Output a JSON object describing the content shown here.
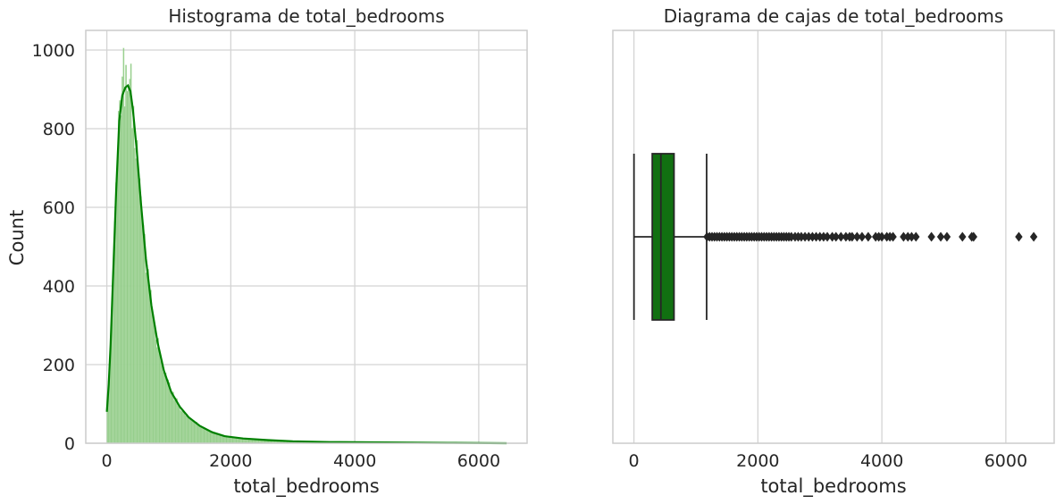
{
  "chart_data": [
    {
      "type": "histogram",
      "title": "Histograma de total_bedrooms",
      "xlabel": "total_bedrooms",
      "ylabel": "Count",
      "xlim": [
        -340,
        6780
      ],
      "ylim": [
        0,
        1050
      ],
      "xticks": [
        0,
        2000,
        4000,
        6000
      ],
      "yticks": [
        0,
        200,
        400,
        600,
        800,
        1000
      ],
      "xtick_labels": [
        "0",
        "2000",
        "4000",
        "6000"
      ],
      "ytick_labels": [
        "0",
        "200",
        "400",
        "600",
        "800",
        "1000"
      ],
      "grid": true,
      "bar_color": "#8fca85",
      "kde_color": "#008000",
      "kde": [
        [
          0,
          80
        ],
        [
          30,
          150
        ],
        [
          60,
          250
        ],
        [
          100,
          420
        ],
        [
          150,
          640
        ],
        [
          200,
          820
        ],
        [
          250,
          885
        ],
        [
          300,
          905
        ],
        [
          340,
          910
        ],
        [
          380,
          895
        ],
        [
          420,
          850
        ],
        [
          480,
          750
        ],
        [
          550,
          610
        ],
        [
          630,
          470
        ],
        [
          720,
          350
        ],
        [
          820,
          255
        ],
        [
          920,
          185
        ],
        [
          1040,
          130
        ],
        [
          1180,
          92
        ],
        [
          1320,
          66
        ],
        [
          1500,
          44
        ],
        [
          1700,
          28
        ],
        [
          1900,
          18
        ],
        [
          2200,
          12
        ],
        [
          2600,
          8
        ],
        [
          3000,
          5
        ],
        [
          3600,
          3
        ],
        [
          4500,
          2
        ],
        [
          5500,
          1
        ],
        [
          6450,
          0
        ]
      ],
      "spike_bins": [
        [
          260,
          1005
        ],
        [
          300,
          962
        ],
        [
          340,
          910
        ],
        [
          380,
          965
        ]
      ]
    },
    {
      "type": "boxplot",
      "title": "Diagrama de cajas de total_bedrooms",
      "xlabel": "total_bedrooms",
      "xlim": [
        -340,
        6780
      ],
      "xticks": [
        0,
        2000,
        4000,
        6000
      ],
      "xtick_labels": [
        "0",
        "2000",
        "4000",
        "6000"
      ],
      "grid": true,
      "box_color": "#117011",
      "whisker_low": 1,
      "q1": 296,
      "median": 435,
      "q3": 647,
      "whisker_high": 1173,
      "outliers": [
        1180,
        1220,
        1260,
        1300,
        1340,
        1380,
        1420,
        1460,
        1500,
        1540,
        1580,
        1620,
        1660,
        1700,
        1740,
        1780,
        1820,
        1860,
        1900,
        1940,
        1980,
        2020,
        2060,
        2100,
        2140,
        2180,
        2220,
        2260,
        2300,
        2340,
        2380,
        2420,
        2460,
        2500,
        2540,
        2600,
        2650,
        2700,
        2760,
        2820,
        2880,
        2940,
        3000,
        3060,
        3120,
        3200,
        3260,
        3340,
        3420,
        3480,
        3520,
        3600,
        3680,
        3780,
        3900,
        3950,
        4000,
        4080,
        4130,
        4180,
        4350,
        4420,
        4480,
        4550,
        4800,
        4950,
        5050,
        5300,
        5450,
        5480,
        6210,
        6450
      ]
    }
  ]
}
